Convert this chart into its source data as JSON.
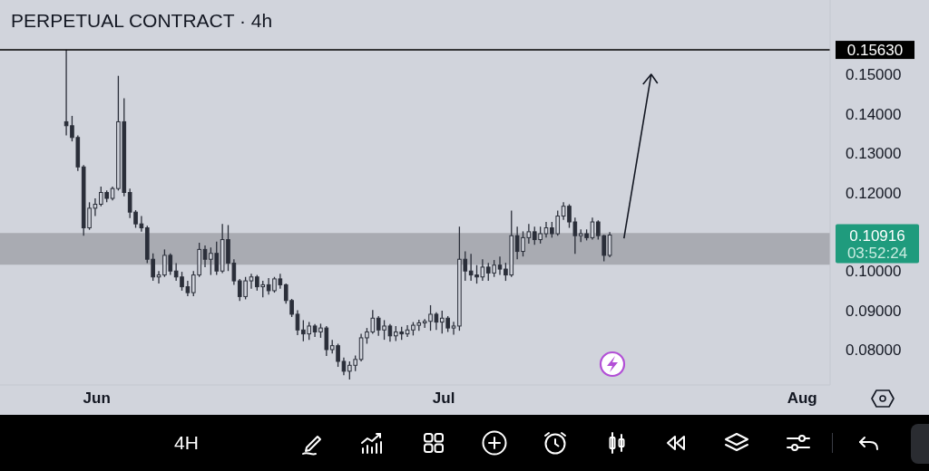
{
  "chart_data": {
    "type": "candlestick",
    "title": "PERPETUAL CONTRACT · 4h",
    "color": "#2a2e39",
    "x": [
      "--05-29T08:00",
      "--05-29T20:00",
      "--05-30T08:00",
      "--05-30T20:00",
      "--05-31T08:00",
      "--05-31T20:00",
      "--06-01T08:00",
      "--06-01T20:00",
      "--06-02T08:00",
      "--06-02T20:00",
      "--06-03T08:00",
      "--06-03T20:00",
      "--06-04T08:00",
      "--06-04T20:00",
      "--06-05T08:00",
      "--06-05T20:00",
      "--06-06T08:00",
      "--06-06T20:00",
      "--06-07T08:00",
      "--06-07T20:00",
      "--06-08T08:00",
      "--06-08T20:00",
      "--06-09T08:00",
      "--06-09T20:00",
      "--06-10T08:00",
      "--06-10T20:00",
      "--06-11T08:00",
      "--06-11T20:00",
      "--06-12T08:00",
      "--06-12T20:00",
      "--06-13T08:00",
      "--06-13T20:00",
      "--06-14T08:00",
      "--06-14T20:00",
      "--06-15T08:00",
      "--06-15T20:00",
      "--06-16T08:00",
      "--06-16T20:00",
      "--06-17T08:00",
      "--06-17T20:00",
      "--06-18T08:00",
      "--06-18T20:00",
      "--06-19T08:00",
      "--06-19T20:00",
      "--06-20T08:00",
      "--06-20T20:00",
      "--06-21T08:00",
      "--06-21T20:00",
      "--06-22T08:00",
      "--06-22T20:00",
      "--06-23T08:00",
      "--06-23T20:00",
      "--06-24T08:00",
      "--06-24T20:00",
      "--06-25T08:00",
      "--06-25T20:00",
      "--06-26T08:00",
      "--06-26T20:00",
      "--06-27T08:00",
      "--06-27T20:00",
      "--06-28T08:00",
      "--06-28T20:00",
      "--06-29T08:00",
      "--06-29T20:00",
      "--06-30T08:00",
      "--06-30T20:00",
      "--07-01T08:00",
      "--07-01T20:00",
      "--07-02T08:00",
      "--07-02T20:00",
      "--07-03T08:00",
      "--07-03T20:00",
      "--07-04T08:00",
      "--07-04T20:00",
      "--07-05T08:00",
      "--07-05T20:00",
      "--07-06T08:00",
      "--07-06T20:00",
      "--07-07T08:00",
      "--07-07T20:00",
      "--07-08T08:00",
      "--07-08T20:00",
      "--07-09T08:00",
      "--07-09T20:00",
      "--07-10T08:00",
      "--07-10T20:00",
      "--07-11T08:00",
      "--07-11T20:00",
      "--07-12T08:00",
      "--07-12T20:00",
      "--07-13T08:00",
      "--07-13T20:00",
      "--07-14T08:00",
      "--07-14T20:00",
      "--07-15T08:00"
    ],
    "ohlc": [
      [
        0.138,
        0.1563,
        0.1345,
        0.137
      ],
      [
        0.137,
        0.1395,
        0.133,
        0.134
      ],
      [
        0.134,
        0.1345,
        0.1255,
        0.1265
      ],
      [
        0.1265,
        0.127,
        0.109,
        0.111
      ],
      [
        0.111,
        0.1175,
        0.1105,
        0.116
      ],
      [
        0.116,
        0.1185,
        0.114,
        0.117
      ],
      [
        0.117,
        0.1215,
        0.1165,
        0.12
      ],
      [
        0.12,
        0.1205,
        0.1175,
        0.1185
      ],
      [
        0.1185,
        0.1215,
        0.118,
        0.121
      ],
      [
        0.121,
        0.1497,
        0.1205,
        0.138
      ],
      [
        0.138,
        0.144,
        0.119,
        0.12
      ],
      [
        0.12,
        0.121,
        0.1135,
        0.115
      ],
      [
        0.115,
        0.1155,
        0.111,
        0.112
      ],
      [
        0.112,
        0.114,
        0.11,
        0.111
      ],
      [
        0.111,
        0.1115,
        0.102,
        0.103
      ],
      [
        0.103,
        0.1045,
        0.0975,
        0.0985
      ],
      [
        0.0985,
        0.1,
        0.0968,
        0.099
      ],
      [
        0.099,
        0.1055,
        0.0985,
        0.104
      ],
      [
        0.104,
        0.1045,
        0.099,
        0.1
      ],
      [
        0.1,
        0.102,
        0.0975,
        0.0985
      ],
      [
        0.0985,
        0.0998,
        0.095,
        0.096
      ],
      [
        0.096,
        0.0975,
        0.0936,
        0.0945
      ],
      [
        0.0945,
        0.1,
        0.0936,
        0.099
      ],
      [
        0.099,
        0.1072,
        0.0985,
        0.1055
      ],
      [
        0.1055,
        0.1065,
        0.101,
        0.103
      ],
      [
        0.103,
        0.106,
        0.099,
        0.1045
      ],
      [
        0.1045,
        0.1075,
        0.099,
        0.1
      ],
      [
        0.1,
        0.112,
        0.0995,
        0.108
      ],
      [
        0.108,
        0.1117,
        0.1,
        0.102
      ],
      [
        0.102,
        0.103,
        0.0965,
        0.0975
      ],
      [
        0.0975,
        0.098,
        0.0924,
        0.0935
      ],
      [
        0.0935,
        0.0985,
        0.0928,
        0.0975
      ],
      [
        0.0975,
        0.0993,
        0.0955,
        0.0985
      ],
      [
        0.0985,
        0.099,
        0.095,
        0.096
      ],
      [
        0.096,
        0.0975,
        0.0933,
        0.0965
      ],
      [
        0.0965,
        0.0982,
        0.094,
        0.095
      ],
      [
        0.095,
        0.0985,
        0.0945,
        0.098
      ],
      [
        0.098,
        0.0993,
        0.0955,
        0.0965
      ],
      [
        0.0965,
        0.0968,
        0.0917,
        0.0925
      ],
      [
        0.0925,
        0.0929,
        0.0883,
        0.089
      ],
      [
        0.089,
        0.09,
        0.0837,
        0.085
      ],
      [
        0.085,
        0.0875,
        0.0821,
        0.084
      ],
      [
        0.084,
        0.087,
        0.0825,
        0.086
      ],
      [
        0.086,
        0.0865,
        0.0832,
        0.0845
      ],
      [
        0.0845,
        0.0866,
        0.083,
        0.0855
      ],
      [
        0.0855,
        0.086,
        0.0784,
        0.08
      ],
      [
        0.08,
        0.0825,
        0.079,
        0.081
      ],
      [
        0.081,
        0.0815,
        0.0756,
        0.077
      ],
      [
        0.077,
        0.078,
        0.0735,
        0.0745
      ],
      [
        0.0745,
        0.077,
        0.0724,
        0.076
      ],
      [
        0.076,
        0.0785,
        0.0745,
        0.0775
      ],
      [
        0.0775,
        0.084,
        0.077,
        0.083
      ],
      [
        0.083,
        0.0855,
        0.0815,
        0.0845
      ],
      [
        0.0845,
        0.0901,
        0.084,
        0.088
      ],
      [
        0.088,
        0.0885,
        0.0835,
        0.085
      ],
      [
        0.085,
        0.0875,
        0.0825,
        0.086
      ],
      [
        0.086,
        0.0865,
        0.082,
        0.0835
      ],
      [
        0.0835,
        0.086,
        0.0822,
        0.0845
      ],
      [
        0.0845,
        0.0858,
        0.0825,
        0.084
      ],
      [
        0.084,
        0.0862,
        0.0832,
        0.085
      ],
      [
        0.085,
        0.087,
        0.0836,
        0.0862
      ],
      [
        0.0862,
        0.0876,
        0.0848,
        0.0868
      ],
      [
        0.0868,
        0.0878,
        0.0855,
        0.0872
      ],
      [
        0.0872,
        0.0913,
        0.0848,
        0.089
      ],
      [
        0.089,
        0.0895,
        0.085,
        0.087
      ],
      [
        0.087,
        0.0899,
        0.0841,
        0.088
      ],
      [
        0.088,
        0.0885,
        0.0845,
        0.0855
      ],
      [
        0.0855,
        0.0871,
        0.0838,
        0.086
      ],
      [
        0.086,
        0.1113,
        0.0848,
        0.103
      ],
      [
        0.103,
        0.105,
        0.0975,
        0.1
      ],
      [
        0.1,
        0.1044,
        0.0975,
        0.099
      ],
      [
        0.099,
        0.1015,
        0.0968,
        0.0985
      ],
      [
        0.0985,
        0.103,
        0.0975,
        0.101
      ],
      [
        0.101,
        0.1021,
        0.0975,
        0.0995
      ],
      [
        0.0995,
        0.1028,
        0.0985,
        0.1015
      ],
      [
        0.1015,
        0.1037,
        0.099,
        0.1005
      ],
      [
        0.1005,
        0.1021,
        0.0975,
        0.099
      ],
      [
        0.099,
        0.1154,
        0.0985,
        0.109
      ],
      [
        0.109,
        0.1113,
        0.103,
        0.105
      ],
      [
        0.105,
        0.1101,
        0.1037,
        0.1085
      ],
      [
        0.1085,
        0.112,
        0.107,
        0.11
      ],
      [
        0.11,
        0.1113,
        0.1067,
        0.108
      ],
      [
        0.108,
        0.1113,
        0.107,
        0.1095
      ],
      [
        0.1095,
        0.1125,
        0.1085,
        0.111
      ],
      [
        0.111,
        0.1125,
        0.1085,
        0.1095
      ],
      [
        0.1095,
        0.1154,
        0.109,
        0.114
      ],
      [
        0.114,
        0.1175,
        0.113,
        0.1165
      ],
      [
        0.1165,
        0.117,
        0.111,
        0.1125
      ],
      [
        0.1125,
        0.1136,
        0.1044,
        0.109
      ],
      [
        0.109,
        0.1106,
        0.1074,
        0.1095
      ],
      [
        0.1095,
        0.1106,
        0.1078,
        0.1085
      ],
      [
        0.1085,
        0.1136,
        0.108,
        0.1125
      ],
      [
        0.1125,
        0.1129,
        0.108,
        0.109
      ],
      [
        0.109,
        0.1092,
        0.1025,
        0.104
      ],
      [
        0.104,
        0.1099,
        0.1035,
        0.10916
      ]
    ],
    "xlim": [
      "--05-23T15:00",
      "--08-03T10:00"
    ],
    "xticks": [
      {
        "value": "--06-01",
        "label": "Jun"
      },
      {
        "value": "--07-01",
        "label": "Jul"
      },
      {
        "value": "--08-01",
        "label": "Aug"
      }
    ],
    "ylim": [
      0.071,
      0.169
    ],
    "yticks": [
      {
        "value": 0.08,
        "label": "0.08000"
      },
      {
        "value": 0.09,
        "label": "0.09000"
      },
      {
        "value": 0.1,
        "label": "0.10000"
      },
      {
        "value": 0.12,
        "label": "0.12000"
      },
      {
        "value": 0.13,
        "label": "0.13000"
      },
      {
        "value": 0.14,
        "label": "0.14000"
      },
      {
        "value": 0.15,
        "label": "0.15000"
      }
    ],
    "bands": [
      {
        "axis": "y",
        "from": 0.1016,
        "to": 0.1097,
        "color": "#a9abb2"
      }
    ],
    "ref_lines": [
      {
        "axis": "y",
        "value": 0.1563,
        "label": "0.15630",
        "color": "#000000"
      }
    ],
    "annotations": [
      "0.10916",
      "03:52:24",
      "4H"
    ]
  }
}
